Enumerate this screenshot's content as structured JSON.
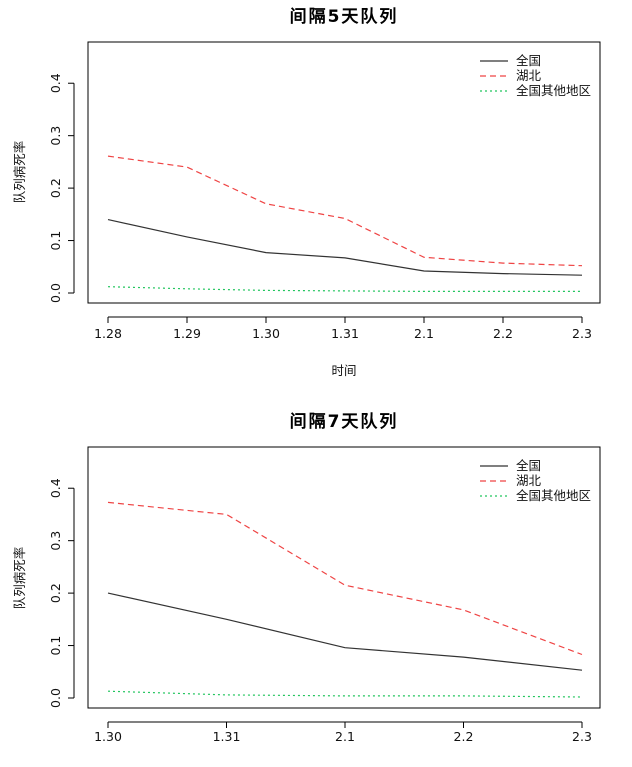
{
  "chart_data": [
    {
      "type": "line",
      "title": "间隔5天队列",
      "xlabel": "时间",
      "ylabel": "队列病死率",
      "categories": [
        "1.28",
        "1.29",
        "1.30",
        "1.31",
        "2.1",
        "2.2",
        "2.3"
      ],
      "ylim": [
        0,
        0.45
      ],
      "yticks": [
        "0.0",
        "0.1",
        "0.2",
        "0.3",
        "0.4"
      ],
      "legend_position": "top-right",
      "grid": false,
      "series": [
        {
          "name": "全国",
          "color": "#333333",
          "dash": "solid",
          "values": [
            0.14,
            0.107,
            0.077,
            0.067,
            0.042,
            0.037,
            0.034
          ]
        },
        {
          "name": "湖北",
          "color": "#ef4444",
          "dash": "dashed",
          "values": [
            0.261,
            0.24,
            0.17,
            0.142,
            0.068,
            0.057,
            0.052
          ]
        },
        {
          "name": "全国其他地区",
          "color": "#22c55e",
          "dash": "dotted",
          "values": [
            0.012,
            0.008,
            0.005,
            0.004,
            0.003,
            0.003,
            0.003
          ]
        }
      ]
    },
    {
      "type": "line",
      "title": "间隔7天队列",
      "xlabel": "",
      "ylabel": "队列病死率",
      "categories": [
        "1.30",
        "1.31",
        "2.1",
        "2.2",
        "2.3"
      ],
      "ylim": [
        0,
        0.45
      ],
      "yticks": [
        "0.0",
        "0.1",
        "0.2",
        "0.3",
        "0.4"
      ],
      "legend_position": "top-right",
      "grid": false,
      "series": [
        {
          "name": "全国",
          "color": "#333333",
          "dash": "solid",
          "values": [
            0.2,
            0.15,
            0.096,
            0.078,
            0.053
          ]
        },
        {
          "name": "湖北",
          "color": "#ef4444",
          "dash": "dashed",
          "values": [
            0.373,
            0.35,
            0.215,
            0.168,
            0.083
          ]
        },
        {
          "name": "全国其他地区",
          "color": "#22c55e",
          "dash": "dotted",
          "values": [
            0.013,
            0.006,
            0.004,
            0.004,
            0.002
          ]
        }
      ]
    }
  ]
}
